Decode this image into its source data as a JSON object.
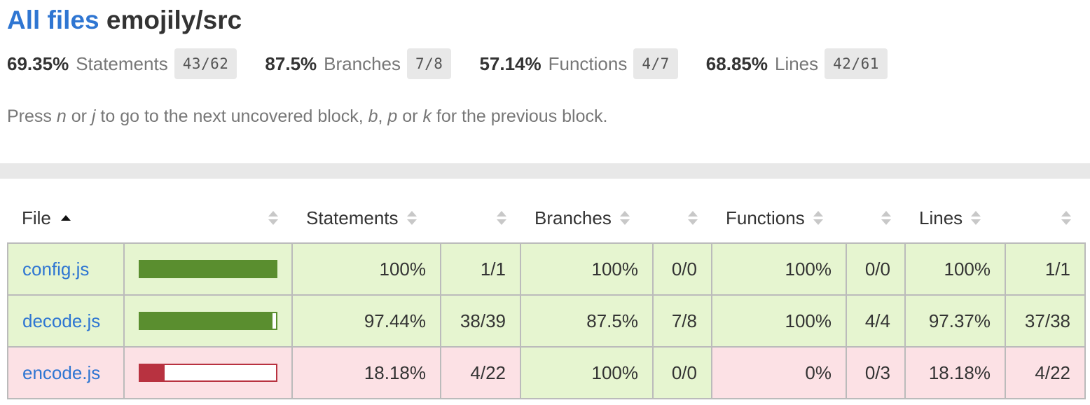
{
  "header": {
    "all_files_link": "All files",
    "directory": "emojily/src"
  },
  "summary": [
    {
      "pct": "69.35%",
      "label": "Statements",
      "fraction": "43/62"
    },
    {
      "pct": "87.5%",
      "label": "Branches",
      "fraction": "7/8"
    },
    {
      "pct": "57.14%",
      "label": "Functions",
      "fraction": "4/7"
    },
    {
      "pct": "68.85%",
      "label": "Lines",
      "fraction": "42/61"
    }
  ],
  "hint": {
    "t1": "Press ",
    "k1": "n",
    "t2": " or ",
    "k2": "j",
    "t3": " to go to the next uncovered block, ",
    "k3": "b",
    "t4": ", ",
    "k4": "p",
    "t5": " or ",
    "k5": "k",
    "t6": " for the previous block."
  },
  "table": {
    "headers": {
      "file": "File",
      "statements": "Statements",
      "branches": "Branches",
      "functions": "Functions",
      "lines": "Lines"
    },
    "rows": [
      {
        "file": "config.js",
        "coverage_fraction": 1.0,
        "statements_pct": "100%",
        "statements_frac": "1/1",
        "branches_pct": "100%",
        "branches_frac": "0/0",
        "functions_pct": "100%",
        "functions_frac": "0/0",
        "lines_pct": "100%",
        "lines_frac": "1/1"
      },
      {
        "file": "decode.js",
        "coverage_fraction": 0.9744,
        "statements_pct": "97.44%",
        "statements_frac": "38/39",
        "branches_pct": "87.5%",
        "branches_frac": "7/8",
        "functions_pct": "100%",
        "functions_frac": "4/4",
        "lines_pct": "97.37%",
        "lines_frac": "37/38"
      },
      {
        "file": "encode.js",
        "coverage_fraction": 0.1818,
        "statements_pct": "18.18%",
        "statements_frac": "4/22",
        "branches_pct": "100%",
        "branches_frac": "0/0",
        "functions_pct": "0%",
        "functions_frac": "0/3",
        "lines_pct": "18.18%",
        "lines_frac": "4/22"
      }
    ]
  },
  "colors": {
    "link": "#2f76d2",
    "high_bg": "#e6f5d0",
    "low_bg": "#fce1e5",
    "high_bar": "#5a8e2f",
    "low_bar": "#b83240"
  }
}
